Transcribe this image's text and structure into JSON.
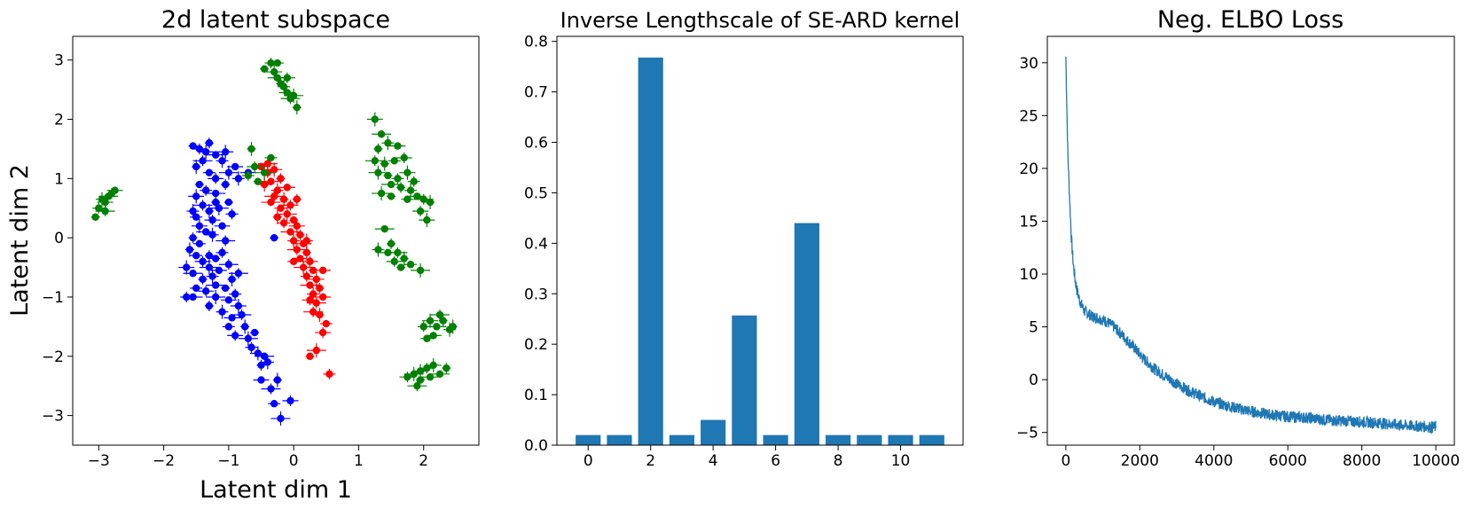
{
  "chart_data": [
    {
      "type": "scatter",
      "title": "2d latent subspace",
      "xlabel": "Latent dim 1",
      "ylabel": "Latent dim 2",
      "xlim": [
        -3.4,
        2.85
      ],
      "ylim": [
        -3.5,
        3.4
      ],
      "xticks": [
        -3,
        -2,
        -1,
        0,
        1,
        2
      ],
      "xtick_labels": [
        "−3",
        "−2",
        "−1",
        "0",
        "1",
        "2"
      ],
      "yticks": [
        -3,
        -2,
        -1,
        0,
        1,
        2,
        3
      ],
      "ytick_labels": [
        "−3",
        "−2",
        "−1",
        "0",
        "1",
        "2",
        "3"
      ],
      "grid": false,
      "error_bars": true,
      "series": [
        {
          "color": "#0000ff",
          "points": [
            [
              -1.55,
              1.55
            ],
            [
              -1.45,
              1.5
            ],
            [
              -1.35,
              1.45
            ],
            [
              -1.2,
              1.4
            ],
            [
              -1.3,
              1.6
            ],
            [
              -1.1,
              1.3
            ],
            [
              -0.9,
              1.2
            ],
            [
              -1.4,
              1.3
            ],
            [
              -1.5,
              1.2
            ],
            [
              -1.3,
              1.1
            ],
            [
              -1.2,
              1.0
            ],
            [
              -1.0,
              1.1
            ],
            [
              -1.45,
              0.9
            ],
            [
              -1.35,
              0.8
            ],
            [
              -1.5,
              0.7
            ],
            [
              -1.2,
              0.75
            ],
            [
              -1.05,
              0.9
            ],
            [
              -0.85,
              1.0
            ],
            [
              -0.7,
              1.1
            ],
            [
              -1.4,
              0.55
            ],
            [
              -1.3,
              0.45
            ],
            [
              -1.5,
              0.35
            ],
            [
              -1.25,
              0.3
            ],
            [
              -1.15,
              0.5
            ],
            [
              -1.0,
              0.6
            ],
            [
              -0.95,
              0.4
            ],
            [
              -1.45,
              0.2
            ],
            [
              -1.35,
              0.1
            ],
            [
              -1.55,
              0.0
            ],
            [
              -1.25,
              0.05
            ],
            [
              -1.1,
              0.2
            ],
            [
              -1.05,
              -0.05
            ],
            [
              -1.6,
              -0.2
            ],
            [
              -1.5,
              -0.3
            ],
            [
              -1.4,
              -0.4
            ],
            [
              -1.3,
              -0.5
            ],
            [
              -1.2,
              -0.35
            ],
            [
              -1.1,
              -0.25
            ],
            [
              -1.65,
              -0.5
            ],
            [
              -1.55,
              -0.6
            ],
            [
              -1.4,
              -0.7
            ],
            [
              -1.25,
              -0.65
            ],
            [
              -1.15,
              -0.55
            ],
            [
              -1.0,
              -0.45
            ],
            [
              -0.95,
              -0.7
            ],
            [
              -1.5,
              -0.85
            ],
            [
              -1.35,
              -0.9
            ],
            [
              -1.2,
              -1.0
            ],
            [
              -1.05,
              -0.85
            ],
            [
              -0.9,
              -0.95
            ],
            [
              -0.85,
              -1.15
            ],
            [
              -1.55,
              -1.0
            ],
            [
              -1.3,
              -1.15
            ],
            [
              -1.1,
              -1.25
            ],
            [
              -0.95,
              -1.35
            ],
            [
              -0.8,
              -1.3
            ],
            [
              -0.75,
              -1.5
            ],
            [
              -1.0,
              -1.5
            ],
            [
              -0.9,
              -1.65
            ],
            [
              -0.7,
              -1.7
            ],
            [
              -0.6,
              -1.6
            ],
            [
              -0.65,
              -1.85
            ],
            [
              -0.55,
              -1.95
            ],
            [
              -0.45,
              -2.0
            ],
            [
              -0.5,
              -2.15
            ],
            [
              -0.4,
              -2.1
            ],
            [
              -0.5,
              -2.4
            ],
            [
              -0.35,
              -2.55
            ],
            [
              -0.25,
              -2.4
            ],
            [
              -0.3,
              -2.8
            ],
            [
              -0.05,
              -2.75
            ],
            [
              -0.2,
              -3.05
            ],
            [
              -0.3,
              0.0
            ],
            [
              -1.65,
              -1.0
            ],
            [
              -1.05,
              1.45
            ],
            [
              -1.2,
              -0.8
            ],
            [
              -1.3,
              -0.3
            ],
            [
              -1.55,
              0.45
            ],
            [
              -1.0,
              -1.05
            ],
            [
              -0.85,
              -0.6
            ],
            [
              -1.2,
              0.6
            ],
            [
              -1.45,
              -0.1
            ]
          ]
        },
        {
          "color": "#ff0000",
          "points": [
            [
              -0.5,
              1.2
            ],
            [
              -0.4,
              1.1
            ],
            [
              -0.3,
              1.15
            ],
            [
              -0.35,
              0.95
            ],
            [
              -0.2,
              1.0
            ],
            [
              -0.25,
              0.8
            ],
            [
              -0.1,
              0.85
            ],
            [
              -0.3,
              0.7
            ],
            [
              -0.15,
              0.65
            ],
            [
              -0.2,
              0.5
            ],
            [
              -0.05,
              0.55
            ],
            [
              -0.1,
              0.4
            ],
            [
              0.0,
              0.3
            ],
            [
              -0.15,
              0.25
            ],
            [
              0.05,
              0.2
            ],
            [
              -0.05,
              0.1
            ],
            [
              0.1,
              0.05
            ],
            [
              0.0,
              -0.05
            ],
            [
              0.15,
              -0.1
            ],
            [
              0.05,
              -0.2
            ],
            [
              0.2,
              -0.25
            ],
            [
              0.1,
              -0.35
            ],
            [
              0.25,
              -0.4
            ],
            [
              0.15,
              -0.5
            ],
            [
              0.3,
              -0.55
            ],
            [
              0.2,
              -0.65
            ],
            [
              0.35,
              -0.7
            ],
            [
              0.25,
              -0.8
            ],
            [
              0.4,
              -0.85
            ],
            [
              0.3,
              -0.95
            ],
            [
              0.45,
              -1.0
            ],
            [
              0.35,
              -1.1
            ],
            [
              0.4,
              -1.3
            ],
            [
              0.5,
              -1.45
            ],
            [
              0.45,
              -1.6
            ],
            [
              0.35,
              -1.9
            ],
            [
              0.25,
              -2.0
            ],
            [
              0.55,
              -2.3
            ],
            [
              -0.45,
              0.9
            ],
            [
              -0.35,
              0.6
            ],
            [
              0.05,
              0.65
            ],
            [
              0.2,
              -0.05
            ],
            [
              0.45,
              -0.55
            ],
            [
              0.3,
              -1.25
            ],
            [
              -0.25,
              0.35
            ],
            [
              0.0,
              -0.4
            ],
            [
              0.25,
              -1.05
            ],
            [
              -0.4,
              1.25
            ]
          ]
        },
        {
          "color": "#008000",
          "points": [
            [
              -0.45,
              2.85
            ],
            [
              -0.35,
              2.95
            ],
            [
              -0.3,
              2.8
            ],
            [
              -0.25,
              2.7
            ],
            [
              -0.2,
              2.6
            ],
            [
              -0.15,
              2.55
            ],
            [
              -0.1,
              2.45
            ],
            [
              -0.05,
              2.35
            ],
            [
              0.05,
              2.2
            ],
            [
              -0.25,
              2.95
            ],
            [
              -0.1,
              2.7
            ],
            [
              0.0,
              2.4
            ],
            [
              -3.05,
              0.35
            ],
            [
              -3.0,
              0.5
            ],
            [
              -2.9,
              0.6
            ],
            [
              -2.85,
              0.7
            ],
            [
              -2.8,
              0.75
            ],
            [
              -2.95,
              0.65
            ],
            [
              -2.75,
              0.8
            ],
            [
              -2.9,
              0.45
            ],
            [
              -0.65,
              1.5
            ],
            [
              -0.35,
              1.35
            ],
            [
              -0.6,
              1.2
            ],
            [
              -0.45,
              1.1
            ],
            [
              -0.55,
              0.95
            ],
            [
              -0.7,
              1.05
            ],
            [
              1.25,
              2.0
            ],
            [
              1.35,
              1.75
            ],
            [
              1.3,
              1.5
            ],
            [
              1.45,
              1.6
            ],
            [
              1.6,
              1.55
            ],
            [
              1.25,
              1.3
            ],
            [
              1.4,
              1.25
            ],
            [
              1.55,
              1.3
            ],
            [
              1.7,
              1.35
            ],
            [
              1.3,
              1.1
            ],
            [
              1.45,
              1.05
            ],
            [
              1.6,
              1.0
            ],
            [
              1.75,
              1.1
            ],
            [
              1.5,
              0.9
            ],
            [
              1.65,
              0.85
            ],
            [
              1.8,
              0.8
            ],
            [
              1.9,
              0.7
            ],
            [
              2.0,
              0.65
            ],
            [
              2.1,
              0.6
            ],
            [
              1.75,
              0.65
            ],
            [
              1.95,
              0.45
            ],
            [
              1.35,
              0.75
            ],
            [
              1.5,
              0.7
            ],
            [
              1.85,
              0.95
            ],
            [
              2.05,
              0.3
            ],
            [
              1.4,
              0.15
            ],
            [
              1.5,
              -0.1
            ],
            [
              1.3,
              -0.2
            ],
            [
              1.45,
              -0.25
            ],
            [
              1.6,
              -0.25
            ],
            [
              1.7,
              -0.35
            ],
            [
              1.8,
              -0.45
            ],
            [
              1.55,
              -0.4
            ],
            [
              1.95,
              -0.55
            ],
            [
              1.65,
              -0.5
            ],
            [
              2.0,
              -1.5
            ],
            [
              2.1,
              -1.4
            ],
            [
              2.2,
              -1.5
            ],
            [
              2.3,
              -1.4
            ],
            [
              2.4,
              -1.55
            ],
            [
              2.15,
              -1.65
            ],
            [
              2.25,
              -1.3
            ],
            [
              2.45,
              -1.5
            ],
            [
              2.05,
              -1.7
            ],
            [
              1.75,
              -2.35
            ],
            [
              1.85,
              -2.3
            ],
            [
              1.95,
              -2.4
            ],
            [
              2.05,
              -2.2
            ],
            [
              2.15,
              -2.15
            ],
            [
              2.25,
              -2.3
            ],
            [
              2.35,
              -2.2
            ],
            [
              1.95,
              -2.25
            ],
            [
              2.1,
              -2.35
            ],
            [
              1.9,
              -2.5
            ]
          ]
        }
      ]
    },
    {
      "type": "bar",
      "title": "Inverse Lengthscale of SE-ARD kernel",
      "xlabel": "",
      "ylabel": "",
      "categories": [
        0,
        1,
        2,
        3,
        4,
        5,
        6,
        7,
        8,
        9,
        10,
        11
      ],
      "values": [
        0.02,
        0.02,
        0.768,
        0.02,
        0.05,
        0.257,
        0.02,
        0.44,
        0.02,
        0.02,
        0.02,
        0.02
      ],
      "xlim": [
        -1.0,
        12.0
      ],
      "ylim": [
        0,
        0.81
      ],
      "xticks": [
        0,
        2,
        4,
        6,
        8,
        10
      ],
      "xtick_labels": [
        "0",
        "2",
        "4",
        "6",
        "8",
        "10"
      ],
      "yticks": [
        0.0,
        0.1,
        0.2,
        0.3,
        0.4,
        0.5,
        0.6,
        0.7,
        0.8
      ],
      "ytick_labels": [
        "0.0",
        "0.1",
        "0.2",
        "0.3",
        "0.4",
        "0.5",
        "0.6",
        "0.7",
        "0.8"
      ],
      "color": "#1f77b4",
      "grid": false
    },
    {
      "type": "line",
      "title": "Neg. ELBO Loss",
      "xlabel": "",
      "ylabel": "",
      "xlim": [
        -500,
        10500
      ],
      "ylim": [
        -6.2,
        32.5
      ],
      "xticks": [
        0,
        2000,
        4000,
        6000,
        8000,
        10000
      ],
      "xtick_labels": [
        "0",
        "2000",
        "4000",
        "6000",
        "8000",
        "10000"
      ],
      "yticks": [
        -5,
        0,
        5,
        10,
        15,
        20,
        25,
        30
      ],
      "ytick_labels": [
        "−5",
        "0",
        "5",
        "10",
        "15",
        "20",
        "25",
        "30"
      ],
      "color": "#1f77b4",
      "grid": false,
      "series": [
        {
          "x": [
            0,
            25,
            50,
            100,
            150,
            200,
            250,
            300,
            350,
            400,
            500,
            700,
            900,
            1100,
            1300,
            1500,
            1800,
            2100,
            2400,
            2700,
            3000,
            3300,
            3600,
            4000,
            4500,
            5000,
            5500,
            6000,
            6500,
            7000,
            7500,
            8000,
            8500,
            9000,
            9500,
            10000
          ],
          "y": [
            30.6,
            26.0,
            22.0,
            17.5,
            13.5,
            11.0,
            9.5,
            8.5,
            7.8,
            7.3,
            6.5,
            6.0,
            5.8,
            5.5,
            5.0,
            4.3,
            3.2,
            2.0,
            1.0,
            0.3,
            -0.4,
            -1.0,
            -1.5,
            -2.1,
            -2.6,
            -3.0,
            -3.3,
            -3.5,
            -3.6,
            -3.8,
            -3.9,
            -4.0,
            -4.1,
            -4.3,
            -4.4,
            -4.5
          ]
        }
      ]
    }
  ]
}
